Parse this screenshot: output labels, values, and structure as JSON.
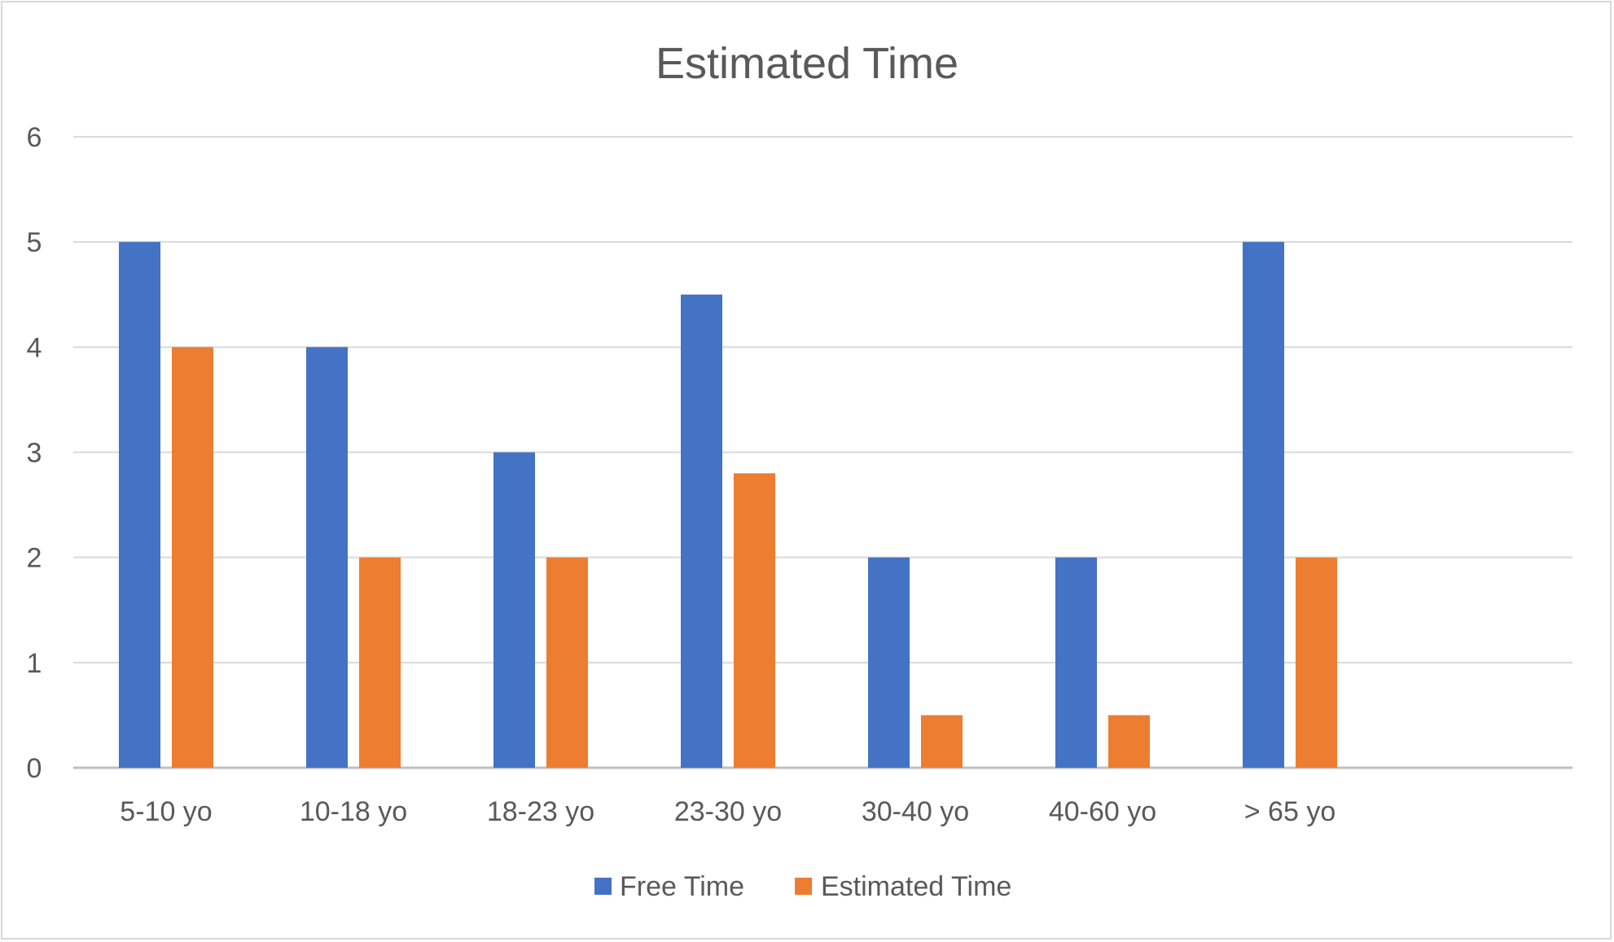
{
  "chart_data": {
    "type": "bar",
    "title": "Estimated Time",
    "xlabel": "",
    "ylabel": "",
    "ylim": [
      0,
      6
    ],
    "y_ticks": [
      "0",
      "1",
      "2",
      "3",
      "4",
      "5",
      "6"
    ],
    "grid": true,
    "legend_position": "bottom",
    "categories": [
      "5-10 yo",
      "10-18 yo",
      "18-23 yo",
      "23-30 yo",
      "30-40 yo",
      "40-60 yo",
      "> 65 yo"
    ],
    "series": [
      {
        "name": "Free Time",
        "color": "#4472c4",
        "values": [
          5,
          4,
          3,
          4.5,
          2,
          2,
          5
        ]
      },
      {
        "name": "Estimated Time",
        "color": "#ed7d31",
        "values": [
          4,
          2,
          2,
          2.8,
          0.5,
          0.5,
          2
        ]
      }
    ]
  }
}
